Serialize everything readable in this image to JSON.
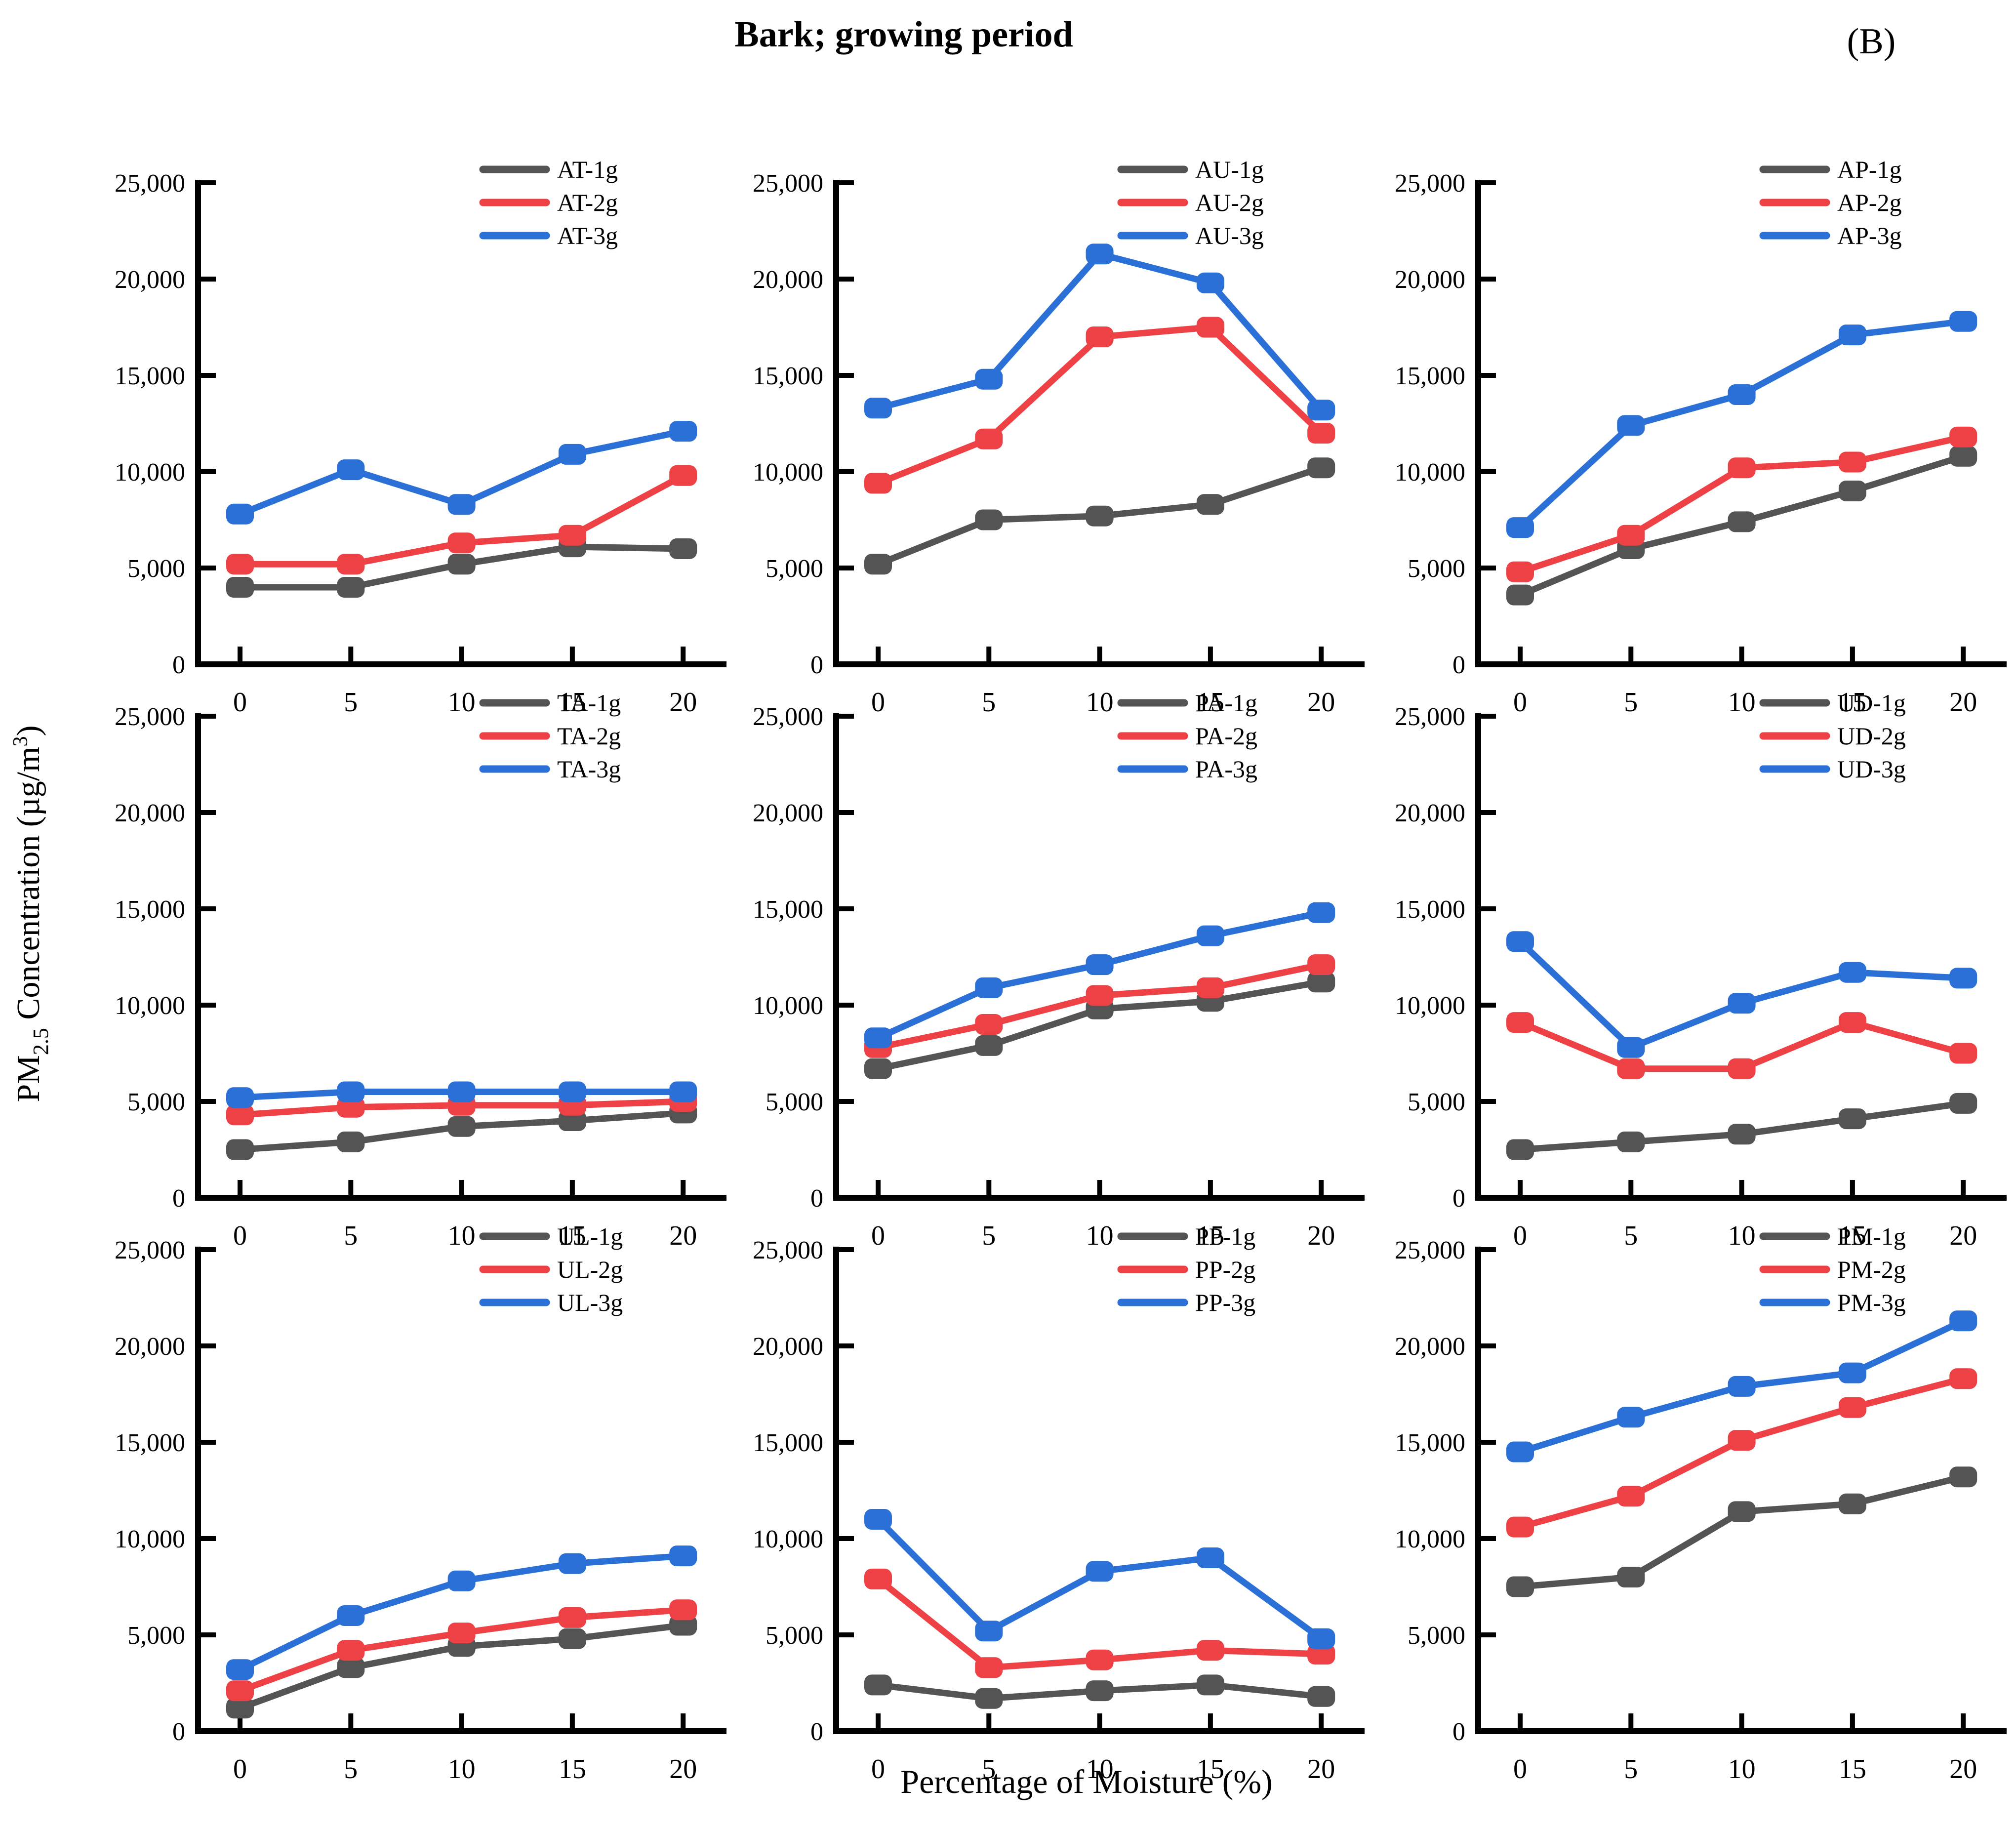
{
  "figure": {
    "title": "Bark; growing period",
    "panel_label": "(B)",
    "x_axis_title": "Percentage of Moisture (%)",
    "y_axis_title": {
      "pm": "PM",
      "sub": "2.5",
      "mid": " Concentration (µg/m",
      "sup": "3",
      "close": ")"
    }
  },
  "colors": {
    "series1": "#545454",
    "series2": "#ee4146",
    "series3": "#2b70d6",
    "axis": "#000000"
  },
  "axes": {
    "x_ticks": [
      0,
      5,
      10,
      15,
      20
    ],
    "y_ticks": [
      "0",
      "5,000",
      "10,000",
      "15,000",
      "20,000",
      "25,000"
    ],
    "y_max": 25000
  },
  "chart_data": [
    {
      "type": "line",
      "panel": "AT",
      "x": [
        0,
        5,
        10,
        15,
        20
      ],
      "ylim": [
        0,
        25000
      ],
      "legend_position": "top-right",
      "grid": false,
      "series": [
        {
          "name": "AT-1g",
          "color": "#545454",
          "values": [
            4000,
            4000,
            5200,
            6100,
            6000
          ]
        },
        {
          "name": "AT-2g",
          "color": "#ee4146",
          "values": [
            5200,
            5200,
            6300,
            6700,
            9800
          ]
        },
        {
          "name": "AT-3g",
          "color": "#2b70d6",
          "values": [
            7800,
            10100,
            8300,
            10900,
            12100
          ]
        }
      ]
    },
    {
      "type": "line",
      "panel": "AU",
      "x": [
        0,
        5,
        10,
        15,
        20
      ],
      "ylim": [
        0,
        25000
      ],
      "legend_position": "top-right",
      "grid": false,
      "series": [
        {
          "name": "AU-1g",
          "color": "#545454",
          "values": [
            5200,
            7500,
            7700,
            8300,
            10200
          ]
        },
        {
          "name": "AU-2g",
          "color": "#ee4146",
          "values": [
            9400,
            11700,
            17000,
            17500,
            12000
          ]
        },
        {
          "name": "AU-3g",
          "color": "#2b70d6",
          "values": [
            13300,
            14800,
            21300,
            19800,
            13200
          ]
        }
      ]
    },
    {
      "type": "line",
      "panel": "AP",
      "x": [
        0,
        5,
        10,
        15,
        20
      ],
      "ylim": [
        0,
        25000
      ],
      "legend_position": "top-right",
      "grid": false,
      "series": [
        {
          "name": "AP-1g",
          "color": "#545454",
          "values": [
            3600,
            6000,
            7400,
            9000,
            10800
          ]
        },
        {
          "name": "AP-2g",
          "color": "#ee4146",
          "values": [
            4800,
            6700,
            10200,
            10500,
            11800
          ]
        },
        {
          "name": "AP-3g",
          "color": "#2b70d6",
          "values": [
            7100,
            12400,
            14000,
            17100,
            17800
          ]
        }
      ]
    },
    {
      "type": "line",
      "panel": "TA",
      "x": [
        0,
        5,
        10,
        15,
        20
      ],
      "ylim": [
        0,
        25000
      ],
      "legend_position": "top-right",
      "grid": false,
      "series": [
        {
          "name": "TA-1g",
          "color": "#545454",
          "values": [
            2500,
            2900,
            3700,
            4000,
            4400
          ]
        },
        {
          "name": "TA-2g",
          "color": "#ee4146",
          "values": [
            4300,
            4700,
            4800,
            4800,
            5000
          ]
        },
        {
          "name": "TA-3g",
          "color": "#2b70d6",
          "values": [
            5200,
            5500,
            5500,
            5500,
            5500
          ]
        }
      ]
    },
    {
      "type": "line",
      "panel": "PA",
      "x": [
        0,
        5,
        10,
        15,
        20
      ],
      "ylim": [
        0,
        25000
      ],
      "legend_position": "top-right",
      "grid": false,
      "series": [
        {
          "name": "PA-1g",
          "color": "#545454",
          "values": [
            6700,
            7900,
            9800,
            10200,
            11200
          ]
        },
        {
          "name": "PA-2g",
          "color": "#ee4146",
          "values": [
            7800,
            9000,
            10500,
            10900,
            12100
          ]
        },
        {
          "name": "PA-3g",
          "color": "#2b70d6",
          "values": [
            8300,
            10900,
            12100,
            13600,
            14800
          ]
        }
      ]
    },
    {
      "type": "line",
      "panel": "UD",
      "x": [
        0,
        5,
        10,
        15,
        20
      ],
      "ylim": [
        0,
        25000
      ],
      "legend_position": "top-right",
      "grid": false,
      "series": [
        {
          "name": "UD-1g",
          "color": "#545454",
          "values": [
            2500,
            2900,
            3300,
            4100,
            4900
          ]
        },
        {
          "name": "UD-2g",
          "color": "#ee4146",
          "values": [
            9100,
            6700,
            6700,
            9100,
            7500
          ]
        },
        {
          "name": "UD-3g",
          "color": "#2b70d6",
          "values": [
            13300,
            7800,
            10100,
            11700,
            11400
          ]
        }
      ]
    },
    {
      "type": "line",
      "panel": "UL",
      "x": [
        0,
        5,
        10,
        15,
        20
      ],
      "ylim": [
        0,
        25000
      ],
      "legend_position": "top-right",
      "grid": false,
      "series": [
        {
          "name": "UL-1g",
          "color": "#545454",
          "values": [
            1200,
            3300,
            4400,
            4800,
            5500
          ]
        },
        {
          "name": "UL-2g",
          "color": "#ee4146",
          "values": [
            2100,
            4200,
            5100,
            5900,
            6300
          ]
        },
        {
          "name": "UL-3g",
          "color": "#2b70d6",
          "values": [
            3200,
            6000,
            7800,
            8700,
            9100
          ]
        }
      ]
    },
    {
      "type": "line",
      "panel": "PP",
      "x": [
        0,
        5,
        10,
        15,
        20
      ],
      "ylim": [
        0,
        25000
      ],
      "legend_position": "top-right",
      "grid": false,
      "series": [
        {
          "name": "PP-1g",
          "color": "#545454",
          "values": [
            2400,
            1700,
            2100,
            2400,
            1800
          ]
        },
        {
          "name": "PP-2g",
          "color": "#ee4146",
          "values": [
            7900,
            3300,
            3700,
            4200,
            4000
          ]
        },
        {
          "name": "PP-3g",
          "color": "#2b70d6",
          "values": [
            11000,
            5200,
            8300,
            9000,
            4800
          ]
        }
      ]
    },
    {
      "type": "line",
      "panel": "PM",
      "x": [
        0,
        5,
        10,
        15,
        20
      ],
      "ylim": [
        0,
        25000
      ],
      "legend_position": "top-right",
      "grid": false,
      "series": [
        {
          "name": "PM-1g",
          "color": "#545454",
          "values": [
            7500,
            8000,
            11400,
            11800,
            13200
          ]
        },
        {
          "name": "PM-2g",
          "color": "#ee4146",
          "values": [
            10600,
            12200,
            15100,
            16800,
            18300
          ]
        },
        {
          "name": "PM-3g",
          "color": "#2b70d6",
          "values": [
            14500,
            16300,
            17900,
            18600,
            21300
          ]
        }
      ]
    }
  ]
}
